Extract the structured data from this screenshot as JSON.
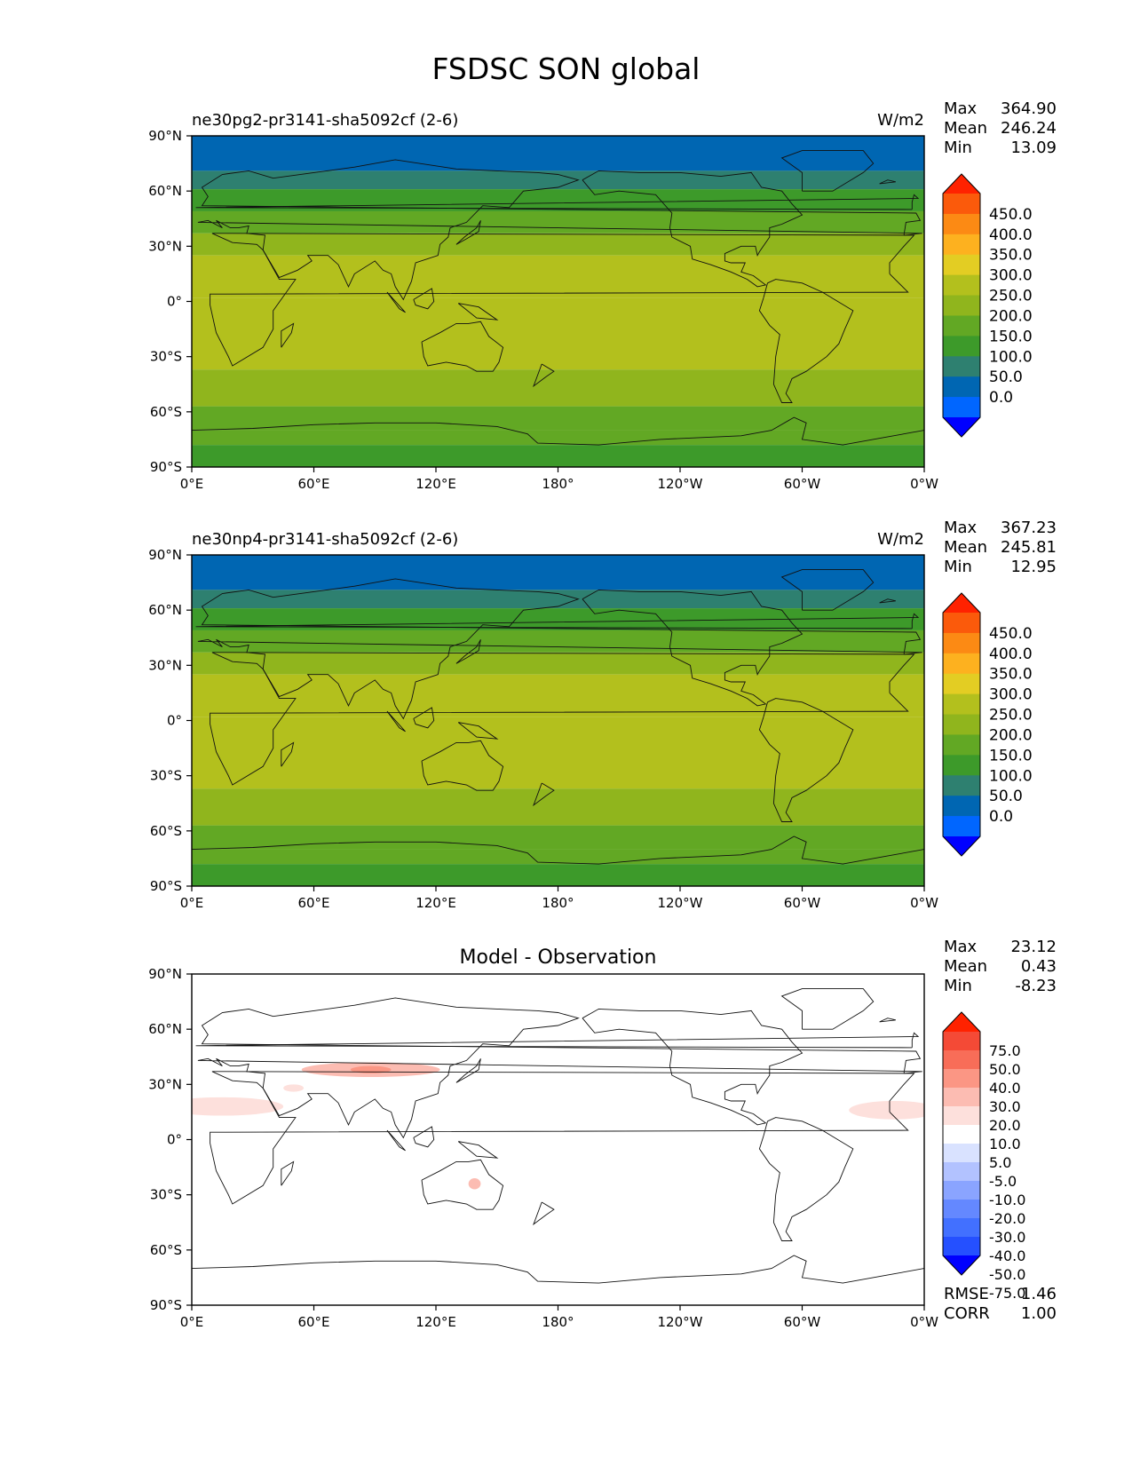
{
  "figure_title": "FSDSC SON global",
  "colors": {
    "field": [
      "#0000ff",
      "#0066ff",
      "#0066b2",
      "#2e8070",
      "#3d9a2a",
      "#62a824",
      "#90b51d",
      "#b3c01d",
      "#e3cd23",
      "#fdb11f",
      "#fc8a14",
      "#fb5a0b",
      "#ff2200"
    ],
    "diff": [
      "#0000ff",
      "#2550ff",
      "#4270ff",
      "#6488ff",
      "#8aa4ff",
      "#b2c2ff",
      "#d9e2ff",
      "#ffffff",
      "#fde0dc",
      "#fcbcb2",
      "#fb9684",
      "#f86d58",
      "#f44a36",
      "#ff2200"
    ]
  },
  "chart_data": [
    {
      "type": "heatmap",
      "title_left": "ne30pg2-pr3141-sha5092cf (2-6)",
      "units": "W/m2",
      "x_ticks": [
        "0°E",
        "60°E",
        "120°E",
        "180°",
        "120°W",
        "60°W",
        "0°W"
      ],
      "y_ticks": [
        "90°N",
        "60°N",
        "30°N",
        "0°",
        "30°S",
        "60°S",
        "90°S"
      ],
      "xlim": [
        0,
        360
      ],
      "ylim": [
        -90,
        90
      ],
      "stats": {
        "max_label": "Max",
        "max": "364.90",
        "mean_label": "Mean",
        "mean": "246.24",
        "min_label": "Min",
        "min": "13.09"
      },
      "colorbar_levels": [
        "450.0",
        "400.0",
        "350.0",
        "300.0",
        "250.0",
        "200.0",
        "150.0",
        "100.0",
        "50.0",
        "0.0"
      ],
      "zonal_bands": [
        {
          "lat": [
            71,
            90
          ],
          "value": 75
        },
        {
          "lat": [
            61,
            71
          ],
          "value": 115
        },
        {
          "lat": [
            49,
            61
          ],
          "value": 160
        },
        {
          "lat": [
            37,
            49
          ],
          "value": 215
        },
        {
          "lat": [
            25,
            37
          ],
          "value": 265
        },
        {
          "lat": [
            2,
            25
          ],
          "value": 300
        },
        {
          "lat": [
            -37,
            2
          ],
          "value": 330
        },
        {
          "lat": [
            -57,
            -37
          ],
          "value": 290
        },
        {
          "lat": [
            -70,
            -57
          ],
          "value": 230
        },
        {
          "lat": [
            -78,
            -70
          ],
          "value": 205
        },
        {
          "lat": [
            -90,
            -78
          ],
          "value": 170
        }
      ]
    },
    {
      "type": "heatmap",
      "title_left": "ne30np4-pr3141-sha5092cf (2-6)",
      "units": "W/m2",
      "x_ticks": [
        "0°E",
        "60°E",
        "120°E",
        "180°",
        "120°W",
        "60°W",
        "0°W"
      ],
      "y_ticks": [
        "90°N",
        "60°N",
        "30°N",
        "0°",
        "30°S",
        "60°S",
        "90°S"
      ],
      "xlim": [
        0,
        360
      ],
      "ylim": [
        -90,
        90
      ],
      "stats": {
        "max_label": "Max",
        "max": "367.23",
        "mean_label": "Mean",
        "mean": "245.81",
        "min_label": "Min",
        "min": "12.95"
      },
      "colorbar_levels": [
        "450.0",
        "400.0",
        "350.0",
        "300.0",
        "250.0",
        "200.0",
        "150.0",
        "100.0",
        "50.0",
        "0.0"
      ],
      "zonal_bands": [
        {
          "lat": [
            71,
            90
          ],
          "value": 75
        },
        {
          "lat": [
            61,
            71
          ],
          "value": 115
        },
        {
          "lat": [
            49,
            61
          ],
          "value": 160
        },
        {
          "lat": [
            37,
            49
          ],
          "value": 215
        },
        {
          "lat": [
            25,
            37
          ],
          "value": 265
        },
        {
          "lat": [
            2,
            25
          ],
          "value": 300
        },
        {
          "lat": [
            -37,
            2
          ],
          "value": 330
        },
        {
          "lat": [
            -57,
            -37
          ],
          "value": 290
        },
        {
          "lat": [
            -70,
            -57
          ],
          "value": 230
        },
        {
          "lat": [
            -78,
            -70
          ],
          "value": 205
        },
        {
          "lat": [
            -90,
            -78
          ],
          "value": 170
        }
      ]
    },
    {
      "type": "heatmap",
      "title_center": "Model - Observation",
      "x_ticks": [
        "0°E",
        "60°E",
        "120°E",
        "180°",
        "120°W",
        "60°W",
        "0°W"
      ],
      "y_ticks": [
        "90°N",
        "60°N",
        "30°N",
        "0°",
        "30°S",
        "60°S",
        "90°S"
      ],
      "xlim": [
        0,
        360
      ],
      "ylim": [
        -90,
        90
      ],
      "stats": {
        "max_label": "Max",
        "max": "23.12",
        "mean_label": "Mean",
        "mean": "0.43",
        "min_label": "Min",
        "min": "-8.23"
      },
      "colorbar_levels": [
        "75.0",
        "50.0",
        "40.0",
        "30.0",
        "20.0",
        "10.0",
        "5.0",
        "-5.0",
        "-10.0",
        "-20.0",
        "-30.0",
        "-40.0",
        "-50.0",
        "-75.0"
      ],
      "metrics": {
        "rmse_label": "RMSE",
        "rmse": "1.46",
        "corr_label": "CORR",
        "corr": "1.00"
      }
    }
  ]
}
